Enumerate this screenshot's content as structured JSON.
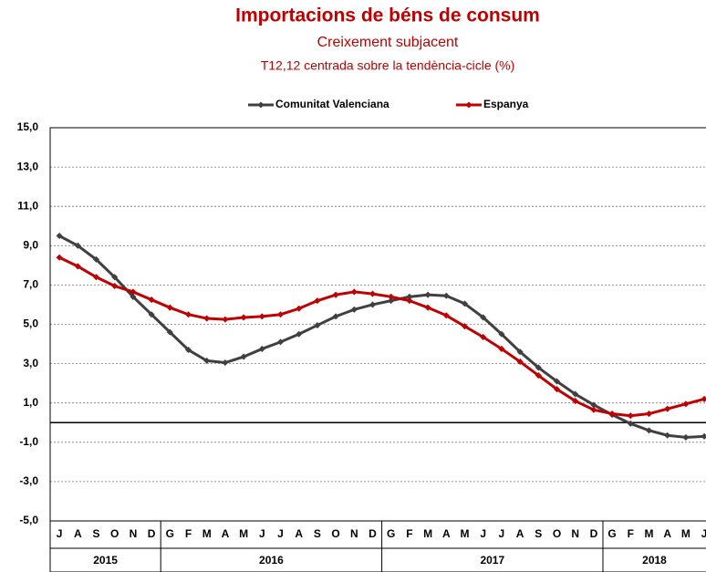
{
  "chart_data": {
    "type": "line",
    "title": "Importacions de béns de consum",
    "subtitle": "Creixement subjacent",
    "note": "T12,12 centrada sobre la tendència-cicle (%)",
    "groups": [
      {
        "label": "2015",
        "categories": [
          "J",
          "A",
          "S",
          "O",
          "N",
          "D"
        ]
      },
      {
        "label": "2016",
        "categories": [
          "G",
          "F",
          "M",
          "A",
          "M",
          "J",
          "J",
          "A",
          "S",
          "O",
          "N",
          "D"
        ]
      },
      {
        "label": "2017",
        "categories": [
          "G",
          "F",
          "M",
          "A",
          "M",
          "J",
          "J",
          "A",
          "S",
          "O",
          "N",
          "D"
        ]
      },
      {
        "label": "2018",
        "categories": [
          "G",
          "F",
          "M",
          "A",
          "M",
          "J"
        ]
      }
    ],
    "series": [
      {
        "name": "Comunitat Valenciana",
        "color": "#404040",
        "values": [
          9.5,
          9.0,
          8.3,
          7.4,
          6.4,
          5.5,
          4.6,
          3.7,
          3.15,
          3.05,
          3.35,
          3.75,
          4.1,
          4.5,
          4.95,
          5.4,
          5.75,
          6.0,
          6.2,
          6.4,
          6.5,
          6.45,
          6.05,
          5.35,
          4.5,
          3.6,
          2.8,
          2.1,
          1.45,
          0.9,
          0.4,
          -0.05,
          -0.4,
          -0.65,
          -0.75,
          -0.7
        ]
      },
      {
        "name": "Espanya",
        "color": "#c00000",
        "values": [
          8.4,
          7.95,
          7.4,
          6.95,
          6.65,
          6.25,
          5.85,
          5.5,
          5.3,
          5.25,
          5.35,
          5.4,
          5.5,
          5.8,
          6.2,
          6.5,
          6.65,
          6.55,
          6.4,
          6.2,
          5.85,
          5.45,
          4.9,
          4.35,
          3.75,
          3.1,
          2.4,
          1.7,
          1.1,
          0.65,
          0.45,
          0.35,
          0.45,
          0.7,
          0.95,
          1.2
        ]
      }
    ],
    "ylim": [
      -5,
      15
    ],
    "yticks": [
      {
        "value": -5,
        "label": "-5,0"
      },
      {
        "value": -3,
        "label": "-3,0"
      },
      {
        "value": -1,
        "label": "-1,0"
      },
      {
        "value": 1,
        "label": "1,0"
      },
      {
        "value": 3,
        "label": "3,0"
      },
      {
        "value": 5,
        "label": "5,0"
      },
      {
        "value": 7,
        "label": "7,0"
      },
      {
        "value": 9,
        "label": "9,0"
      },
      {
        "value": 11,
        "label": "11,0"
      },
      {
        "value": 13,
        "label": "13,0"
      },
      {
        "value": 15,
        "label": "15,0"
      }
    ],
    "grid": true
  }
}
